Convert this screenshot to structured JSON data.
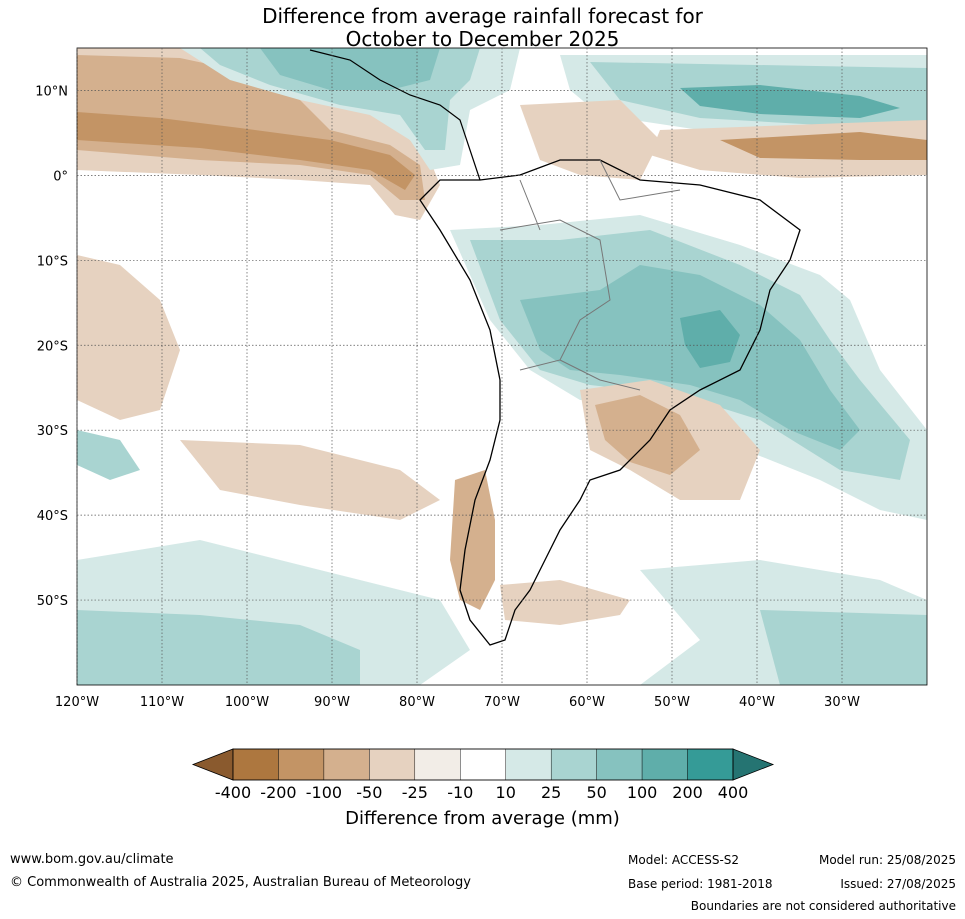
{
  "title": {
    "line1": "Difference from average rainfall forecast for",
    "line2": "October to December 2025"
  },
  "map": {
    "lon_labels": [
      "120°W",
      "110°W",
      "100°W",
      "90°W",
      "80°W",
      "70°W",
      "60°W",
      "50°W",
      "40°W",
      "30°W"
    ],
    "lat_labels": [
      "10°N",
      "0°",
      "10°S",
      "20°S",
      "30°S",
      "40°S",
      "50°S"
    ],
    "gridlines": true,
    "region": "South America",
    "extent": {
      "lon": [
        -120,
        -20
      ],
      "lat": [
        -60,
        15
      ]
    }
  },
  "colorbar": {
    "ticks": [
      "-400",
      "-200",
      "-100",
      "-50",
      "-25",
      "-10",
      "10",
      "25",
      "50",
      "100",
      "200",
      "400"
    ],
    "colors": [
      "#8a5a2e",
      "#ad773f",
      "#c39465",
      "#d4b08e",
      "#e6d2c0",
      "#f2ede7",
      "#ffffff",
      "#d5e9e7",
      "#a9d4d1",
      "#86c2bf",
      "#5faeaa",
      "#359b97",
      "#257472"
    ],
    "label": "Difference from average (mm)"
  },
  "footer": {
    "url": "www.bom.gov.au/climate",
    "copyright": "© Commonwealth of Australia 2025, Australian Bureau of Meteorology",
    "model": "Model: ACCESS-S2",
    "base_period": "Base period: 1981-2018",
    "model_run": "Model run: 25/08/2025",
    "issued": "Issued: 27/08/2025",
    "disclaimer": "Boundaries are not considered authoritative"
  }
}
